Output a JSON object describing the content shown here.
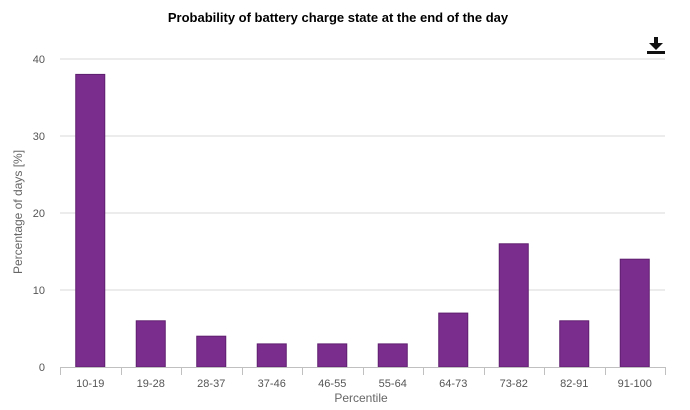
{
  "chart_data": {
    "type": "bar",
    "title": "Probability of battery charge state at the end of the day",
    "xlabel": "Percentile",
    "ylabel": "Percentage of days [%]",
    "categories": [
      "10-19",
      "19-28",
      "28-37",
      "37-46",
      "46-55",
      "55-64",
      "64-73",
      "73-82",
      "82-91",
      "91-100"
    ],
    "values": [
      38,
      6,
      4,
      3,
      3,
      3,
      7,
      16,
      6,
      14
    ],
    "ylim": [
      0,
      40
    ],
    "yticks": [
      "0",
      "10",
      "20",
      "30",
      "40"
    ],
    "grid": true,
    "legend": "none",
    "colors": {
      "bar": "#7b2d8e",
      "bar_border": "#5e1f6e"
    }
  },
  "toolbar": {
    "download_icon": "download-icon"
  }
}
